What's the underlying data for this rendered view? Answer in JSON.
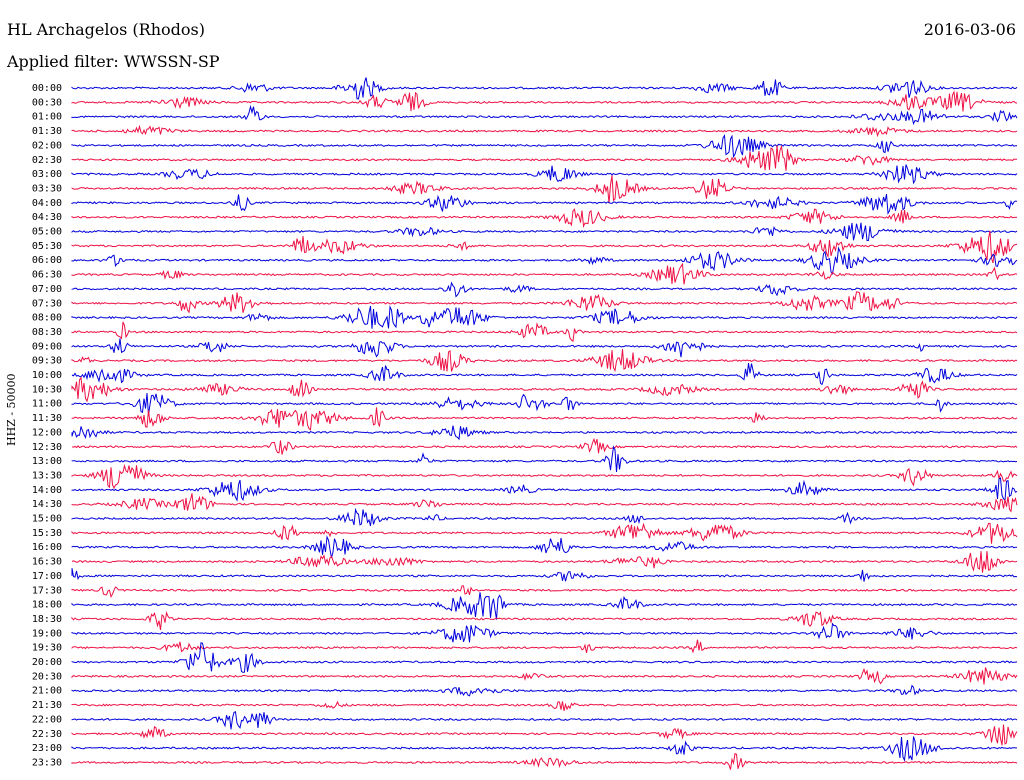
{
  "header": {
    "station": "HL Archagelos (Rhodos)",
    "date": "2016-03-06",
    "filter": "Applied filter: WWSSN-SP"
  },
  "channel_label": "HHZ - 50000",
  "colors": {
    "blue": "#0000dd",
    "red": "#ee1144"
  },
  "trace_rows": [
    "00:00",
    "00:30",
    "01:00",
    "01:30",
    "02:00",
    "02:30",
    "03:00",
    "03:30",
    "04:00",
    "04:30",
    "05:00",
    "05:30",
    "06:00",
    "06:30",
    "07:00",
    "07:30",
    "08:00",
    "08:30",
    "09:00",
    "09:30",
    "10:00",
    "10:30",
    "11:00",
    "11:30",
    "12:00",
    "12:30",
    "13:00",
    "13:30",
    "14:00",
    "14:30",
    "15:00",
    "15:30",
    "16:00",
    "16:30",
    "17:00",
    "17:30",
    "18:00",
    "18:30",
    "19:00",
    "19:30",
    "20:00",
    "20:30",
    "21:00",
    "21:30",
    "22:00",
    "22:30",
    "23:00",
    "23:30"
  ]
}
